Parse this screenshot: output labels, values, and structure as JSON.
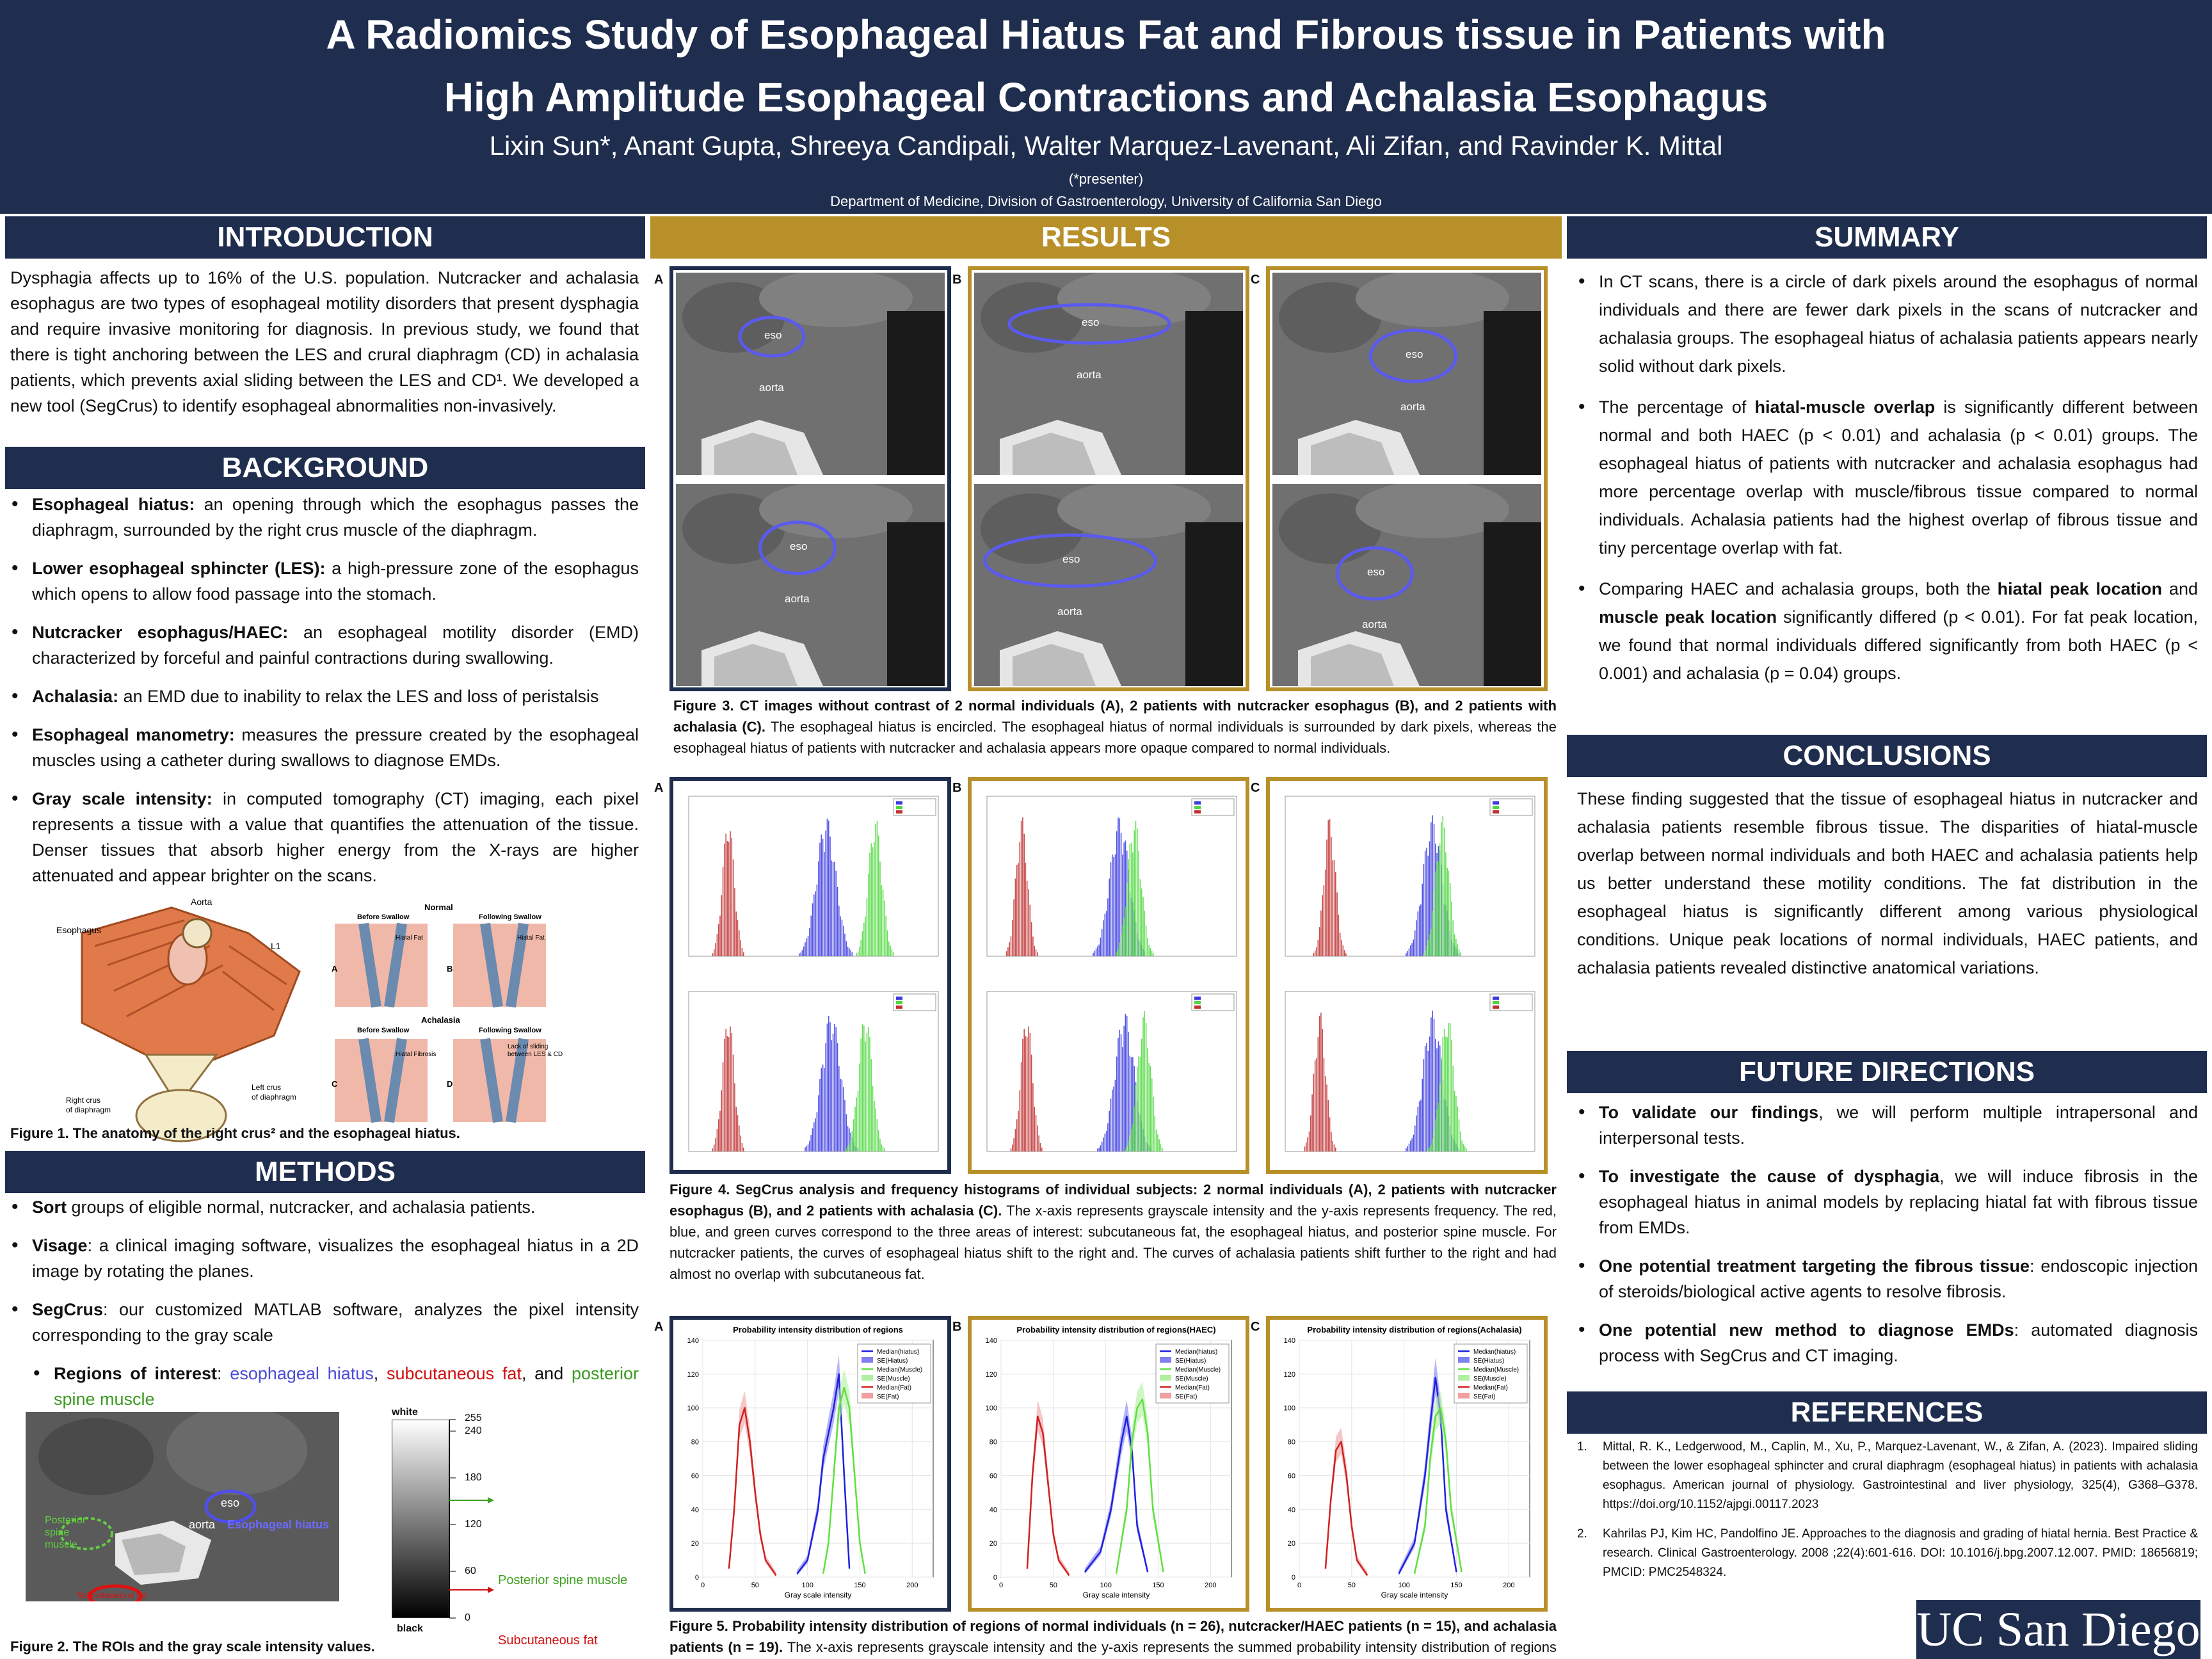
{
  "header": {
    "title_line1": "A Radiomics Study of Esophageal Hiatus Fat and Fibrous tissue in Patients with",
    "title_line2": "High Amplitude Esophageal Contractions and Achalasia Esophagus",
    "authors": "Lixin Sun*, Anant Gupta, Shreeya Candipali, Walter Marquez-Lavenant, Ali Zifan, and Ravinder K. Mittal",
    "presenter_note": "(*presenter)",
    "department": "Department of Medicine, Division of Gastroenterology, University of California San Diego"
  },
  "introduction": {
    "heading": "INTRODUCTION",
    "text": "Dysphagia affects up to 16% of the U.S. population. Nutcracker and achalasia esophagus are two types of esophageal motility disorders that present dysphagia and require invasive monitoring for diagnosis. In previous study, we found that there is tight anchoring between the LES and crural diaphragm (CD) in achalasia patients, which prevents axial sliding between the LES and CD¹. We developed a new tool (SegCrus) to identify esophageal abnormalities non-invasively."
  },
  "background": {
    "heading": "BACKGROUND",
    "items": [
      {
        "term": "Esophageal hiatus:",
        "desc": " an opening through which the esophagus passes the diaphragm, surrounded by the right crus muscle of the diaphragm."
      },
      {
        "term": "Lower esophageal sphincter (LES):",
        "desc": " a high-pressure zone of the esophagus which opens to allow food passage into the stomach."
      },
      {
        "term": "Nutcracker esophagus/HAEC:",
        "desc": " an esophageal motility disorder (EMD) characterized by forceful and painful contractions during swallowing."
      },
      {
        "term": "Achalasia:",
        "desc": " an EMD due to inability to relax the LES and loss of peristalsis"
      },
      {
        "term": "Esophageal manometry:",
        "desc": " measures the pressure created by the esophageal muscles using a catheter during swallows to diagnose EMDs."
      },
      {
        "term": "Gray scale intensity:",
        "desc": " in computed tomography (CT) imaging, each pixel represents a tissue with a value that quantifies the attenuation of the tissue. Denser tissues that absorb higher energy from the X-rays are higher attenuated and appear brighter on the scans."
      }
    ],
    "fig1_caption": "Figure 1. The anatomy of the right crus² and the esophageal hiatus.",
    "fig1_labels": {
      "esophagus": "Esophagus",
      "aorta": "Aorta",
      "l1": "L1",
      "right_crus": "Right crus\nof diaphragm",
      "left_crus": "Left crus\nof diaphragm",
      "normal": "Normal",
      "achalasia": "Achalasia",
      "before": "Before Swallow",
      "following": "Following Swallow",
      "hiatal_fat": "Hiatal Fat",
      "hiatal_fibrosis": "Hiatal Fibrosis",
      "lack": "Lack of sliding\nbetween LES & CD",
      "A": "A",
      "B": "B",
      "C": "C",
      "D": "D"
    }
  },
  "methods": {
    "heading": "METHODS",
    "items": [
      {
        "term": "Sort",
        "desc": " groups of eligible normal, nutcracker, and achalasia patients."
      },
      {
        "term": "Visage",
        "desc": ": a clinical imaging software, visualizes the esophageal hiatus in a 2D image by rotating the planes."
      },
      {
        "term": "SegCrus",
        "desc": ": our customized MATLAB software, analyzes the pixel intensity corresponding to the gray scale"
      }
    ],
    "roi": {
      "term": "Regions of interest",
      "colon": ": ",
      "hiatus": "esophageal hiatus",
      "sep1": ", ",
      "fat": "subcutaneous fat",
      "sep2": ", and ",
      "muscle": "posterior spine muscle"
    },
    "fig2": {
      "white": "white",
      "black": "black",
      "ticks": [
        "255",
        "240",
        "180",
        "120",
        "60",
        "0"
      ],
      "muscle_label": "Posterior spine muscle",
      "fat_label": "Subcutaneous fat",
      "eso": "eso",
      "aorta": "aorta",
      "hiatus_label": "Esophageal hiatus",
      "muscle_overlay": "Posterior\nspine\nmuscle",
      "fat_overlay": "Subcutaneous fat"
    },
    "fig2_caption": "Figure 2. The ROIs and the gray scale intensity values."
  },
  "results": {
    "heading": "RESULTS",
    "fig3": {
      "labels": [
        "A",
        "B",
        "C"
      ],
      "eso": "eso",
      "aorta": "aorta",
      "caption_bold": "Figure 3. CT images without contrast of 2 normal individuals (A), 2 patients with nutcracker esophagus (B), and 2 patients with achalasia (C).",
      "caption_rest": " The esophageal hiatus is encircled. The esophageal hiatus of normal individuals is surrounded by dark pixels, whereas the esophageal hiatus of patients with nutcracker and achalasia appears more opaque compared to normal individuals."
    },
    "fig4": {
      "labels": [
        "A",
        "B",
        "C"
      ],
      "caption_bold": "Figure 4. SegCrus analysis and frequency histograms of individual subjects: 2 normal individuals (A), 2 patients with nutcracker esophagus (B), and 2 patients with achalasia (C).",
      "caption_rest": " The x-axis represents grayscale intensity and the y-axis represents frequency. The red, blue, and green curves correspond to the three areas of interest: subcutaneous fat, the esophageal hiatus, and posterior spine muscle. For nutcracker patients, the curves of esophageal hiatus shift to the right and. The curves of achalasia patients shift further to the right and had almost no overlap with subcutaneous fat."
    },
    "fig5": {
      "labels": [
        "A",
        "B",
        "C"
      ],
      "titles": [
        "Probability intensity distribution of regions",
        "Probability intensity distribution of regions(HAEC)",
        "Probability intensity distribution of regions(Achalasia)"
      ],
      "xlabel": "Gray scale intensity",
      "legend": [
        "Median(hiatus)",
        "SE(Hiatus)",
        "Median(Muscle)",
        "SE(Muscle)",
        "Median(Fat)",
        "SE(Fat)"
      ],
      "xticks": [
        "0",
        "50",
        "100",
        "150",
        "200"
      ],
      "yticks": [
        "0",
        "20",
        "40",
        "60",
        "80",
        "100",
        "120",
        "140"
      ],
      "caption_bold": "Figure 5. Probability intensity distribution of regions of normal individuals (n = 26), nutcracker/HAEC patients (n = 15), and achalasia patients (n = 19).",
      "caption_rest": " The x-axis represents grayscale intensity and the y-axis represents the summed probability intensity distribution of regions of each patient group. The group of achalasia patients had the highest  % overlap of muscle."
    }
  },
  "summary": {
    "heading": "SUMMARY",
    "p1": "In CT scans, there is a circle of dark pixels around the esophagus of normal individuals and there are fewer dark pixels in the scans of nutcracker and achalasia groups. The esophageal hiatus of achalasia patients appears nearly solid without dark pixels.",
    "p2a": "The percentage of ",
    "p2b": "hiatal-muscle overlap",
    "p2c": " is significantly different between normal and both HAEC (p < 0.01) and achalasia (p < 0.01) groups. The esophageal hiatus of patients with nutcracker and achalasia esophagus had more percentage overlap with muscle/fibrous tissue compared to normal individuals. Achalasia patients had the highest overlap of fibrous tissue and tiny percentage overlap with fat.",
    "p3a": "Comparing HAEC and achalasia groups, both the ",
    "p3b": "hiatal peak location",
    "p3c": " and ",
    "p3d": "muscle peak location",
    "p3e": " significantly differed (p < 0.01). For fat peak location, we found that normal individuals differed significantly from both HAEC (p < 0.001) and achalasia (p = 0.04) groups."
  },
  "conclusions": {
    "heading": "CONCLUSIONS",
    "text": "These finding suggested that the tissue of esophageal hiatus in nutcracker and achalasia patients resemble fibrous tissue. The disparities of hiatal-muscle overlap between normal individuals and both HAEC and achalasia patients help us better understand these motility conditions. The fat distribution in the esophageal hiatus is significantly different among various physiological conditions. Unique peak locations of normal individuals, HAEC patients, and achalasia patients revealed distinctive anatomical variations."
  },
  "future": {
    "heading": "FUTURE DIRECTIONS",
    "items": [
      {
        "term": "To validate our findings",
        "desc": ", we will perform multiple intrapersonal and interpersonal tests."
      },
      {
        "term": "To investigate the cause of dysphagia",
        "desc": ", we will induce fibrosis in the esophageal hiatus in animal models by replacing hiatal fat with fibrous tissue from EMDs."
      },
      {
        "term": "One potential treatment targeting the fibrous tissue",
        "desc": ": endoscopic injection of steroids/biological active agents to resolve fibrosis."
      },
      {
        "term": "One potential new method to diagnose EMDs",
        "desc": ": automated diagnosis process with SegCrus and CT imaging."
      }
    ]
  },
  "references": {
    "heading": "REFERENCES",
    "items": [
      {
        "num": "1.",
        "text": "Mittal, R. K., Ledgerwood, M., Caplin, M., Xu, P., Marquez-Lavenant, W., & Zifan, A. (2023). Impaired sliding between the lower esophageal sphincter and crural diaphragm (esophageal hiatus) in patients with achalasia esophagus. American journal of physiology. Gastrointestinal and liver physiology, 325(4), G368–G378. https://doi.org/10.1152/ajpgi.00117.2023"
      },
      {
        "num": "2.",
        "text": "Kahrilas PJ, Kim HC, Pandolfino JE. Approaches to the diagnosis and grading of hiatal hernia. Best Practice & research. Clinical Gastroenterology. 2008 ;22(4):601-616. DOI: 10.1016/j.bpg.2007.12.007. PMID: 18656819; PMCID: PMC2548324."
      }
    ]
  },
  "logo": "UC San Diego",
  "colors": {
    "navy": "#1f2d4e",
    "gold": "#b8902a",
    "blue_curve": "#3a3ae0",
    "red_curve": "#c02020",
    "green_curve": "#60e040"
  },
  "chart_data": [
    {
      "type": "line",
      "title": "Probability intensity distribution of regions",
      "xlabel": "Gray scale intensity",
      "ylabel": "",
      "xlim": [
        0,
        220
      ],
      "ylim": [
        0,
        140
      ],
      "series": [
        {
          "name": "Median(hiatus)",
          "x": [
            90,
            100,
            110,
            115,
            120,
            125,
            130,
            135,
            140
          ],
          "y": [
            2,
            10,
            40,
            70,
            85,
            100,
            120,
            60,
            5
          ]
        },
        {
          "name": "Median(Muscle)",
          "x": [
            115,
            120,
            125,
            130,
            135,
            140,
            145,
            150,
            155
          ],
          "y": [
            2,
            20,
            60,
            100,
            112,
            100,
            60,
            20,
            2
          ]
        },
        {
          "name": "Median(Fat)",
          "x": [
            25,
            30,
            35,
            40,
            45,
            50,
            55,
            60,
            70
          ],
          "y": [
            5,
            40,
            90,
            100,
            80,
            50,
            25,
            10,
            1
          ]
        }
      ]
    },
    {
      "type": "line",
      "title": "Probability intensity distribution of regions(HAEC)",
      "xlabel": "Gray scale intensity",
      "ylabel": "",
      "xlim": [
        0,
        220
      ],
      "ylim": [
        0,
        140
      ],
      "series": [
        {
          "name": "Median(hiatus)",
          "x": [
            80,
            95,
            105,
            110,
            115,
            120,
            125,
            130,
            140
          ],
          "y": [
            3,
            15,
            40,
            60,
            80,
            95,
            75,
            30,
            3
          ]
        },
        {
          "name": "Median(Muscle)",
          "x": [
            110,
            120,
            125,
            130,
            135,
            140,
            145,
            155
          ],
          "y": [
            2,
            40,
            80,
            100,
            105,
            85,
            40,
            3
          ]
        },
        {
          "name": "Median(Fat)",
          "x": [
            25,
            30,
            35,
            40,
            45,
            50,
            55,
            65
          ],
          "y": [
            5,
            60,
            95,
            85,
            55,
            25,
            10,
            1
          ]
        }
      ]
    },
    {
      "type": "line",
      "title": "Probability intensity distribution of regions(Achalasia)",
      "xlabel": "Gray scale intensity",
      "ylabel": "",
      "xlim": [
        0,
        220
      ],
      "ylim": [
        0,
        140
      ],
      "series": [
        {
          "name": "Median(hiatus)",
          "x": [
            95,
            110,
            120,
            125,
            130,
            135,
            140,
            150
          ],
          "y": [
            2,
            20,
            60,
            90,
            118,
            95,
            40,
            3
          ]
        },
        {
          "name": "Median(Muscle)",
          "x": [
            110,
            120,
            125,
            130,
            135,
            140,
            145,
            155
          ],
          "y": [
            2,
            30,
            70,
            95,
            100,
            80,
            40,
            3
          ]
        },
        {
          "name": "Median(Fat)",
          "x": [
            25,
            30,
            35,
            40,
            45,
            50,
            55,
            65
          ],
          "y": [
            5,
            45,
            75,
            80,
            60,
            30,
            10,
            1
          ]
        }
      ]
    }
  ]
}
